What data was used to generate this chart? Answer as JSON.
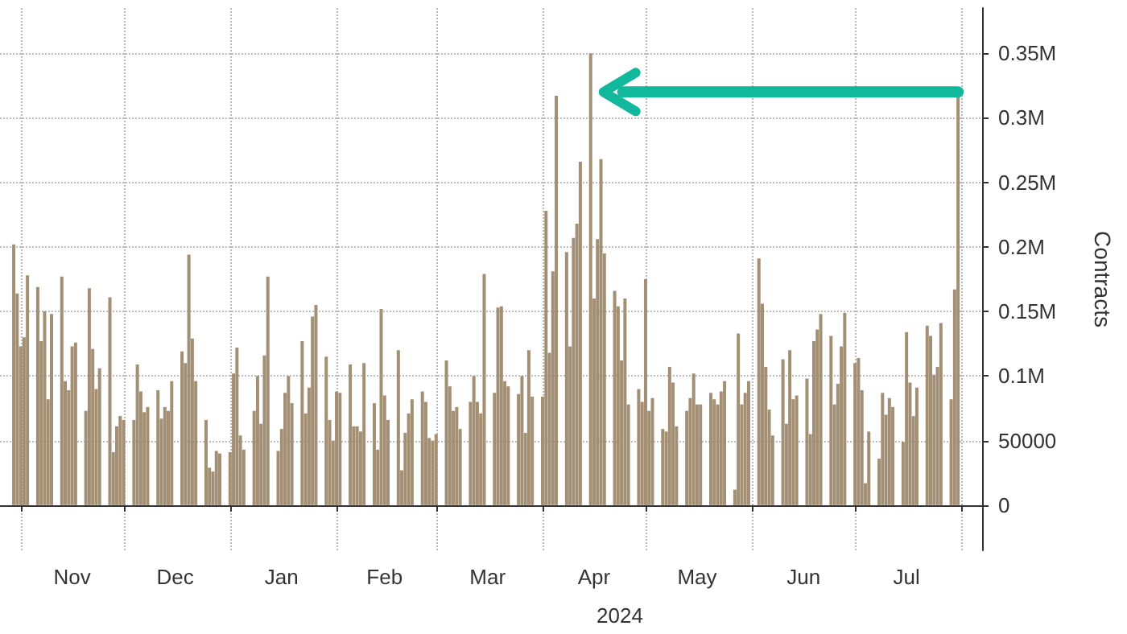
{
  "chart_data": {
    "type": "bar",
    "ylabel": "Contracts",
    "xlabel": "2024",
    "color": "#a38f74",
    "grid": true,
    "xlim": [
      "2023-10-26",
      "2024-08-07"
    ],
    "xticks": [
      {
        "value": "2023-11-01",
        "label": null
      },
      {
        "value": "2023-12-01",
        "label": null
      },
      {
        "value": "2024-01-01",
        "label": null
      },
      {
        "value": "2024-02-01",
        "label": null
      },
      {
        "value": "2024-03-01",
        "label": null
      },
      {
        "value": "2024-04-01",
        "label": null
      },
      {
        "value": "2024-05-01",
        "label": null
      },
      {
        "value": "2024-06-01",
        "label": null
      },
      {
        "value": "2024-07-01",
        "label": null
      },
      {
        "value": "2024-08-01",
        "label": null
      },
      {
        "value": "2023-11-16",
        "label": "Nov"
      },
      {
        "value": "2023-12-16",
        "label": "Dec"
      },
      {
        "value": "2024-01-16",
        "label": "Jan"
      },
      {
        "value": "2024-02-15",
        "label": "Feb"
      },
      {
        "value": "2024-03-16",
        "label": "Mar"
      },
      {
        "value": "2024-04-16",
        "label": "Apr"
      },
      {
        "value": "2024-05-16",
        "label": "May"
      },
      {
        "value": "2024-06-16",
        "label": "Jun"
      },
      {
        "value": "2024-07-16",
        "label": "Jul"
      }
    ],
    "ylim": [
      -35000,
      385000
    ],
    "yticks": [
      0,
      50000,
      {
        "value": 100000,
        "label": "0.1M"
      },
      {
        "value": 150000,
        "label": "0.15M"
      },
      {
        "value": 200000,
        "label": "0.2M"
      },
      {
        "value": 250000,
        "label": "0.25M"
      },
      {
        "value": 300000,
        "label": "0.3M"
      },
      {
        "value": 350000,
        "label": "0.35M"
      }
    ],
    "x": [
      "2023-10-30",
      "2023-10-31",
      "2023-11-01",
      "2023-11-02",
      "2023-11-03",
      "2023-11-06",
      "2023-11-07",
      "2023-11-08",
      "2023-11-09",
      "2023-11-10",
      "2023-11-13",
      "2023-11-14",
      "2023-11-15",
      "2023-11-16",
      "2023-11-17",
      "2023-11-20",
      "2023-11-21",
      "2023-11-22",
      "2023-11-23",
      "2023-11-24",
      "2023-11-27",
      "2023-11-28",
      "2023-11-29",
      "2023-11-30",
      "2023-12-01",
      "2023-12-04",
      "2023-12-05",
      "2023-12-06",
      "2023-12-07",
      "2023-12-08",
      "2023-12-11",
      "2023-12-12",
      "2023-12-13",
      "2023-12-14",
      "2023-12-15",
      "2023-12-18",
      "2023-12-19",
      "2023-12-20",
      "2023-12-21",
      "2023-12-22",
      "2023-12-25",
      "2023-12-26",
      "2023-12-27",
      "2023-12-28",
      "2023-12-29",
      "2024-01-01",
      "2024-01-02",
      "2024-01-03",
      "2024-01-04",
      "2024-01-05",
      "2024-01-08",
      "2024-01-09",
      "2024-01-10",
      "2024-01-11",
      "2024-01-12",
      "2024-01-15",
      "2024-01-16",
      "2024-01-17",
      "2024-01-18",
      "2024-01-19",
      "2024-01-22",
      "2024-01-23",
      "2024-01-24",
      "2024-01-25",
      "2024-01-26",
      "2024-01-29",
      "2024-01-30",
      "2024-01-31",
      "2024-02-01",
      "2024-02-02",
      "2024-02-05",
      "2024-02-06",
      "2024-02-07",
      "2024-02-08",
      "2024-02-09",
      "2024-02-12",
      "2024-02-13",
      "2024-02-14",
      "2024-02-15",
      "2024-02-16",
      "2024-02-19",
      "2024-02-20",
      "2024-02-21",
      "2024-02-22",
      "2024-02-23",
      "2024-02-26",
      "2024-02-27",
      "2024-02-28",
      "2024-02-29",
      "2024-03-01",
      "2024-03-04",
      "2024-03-05",
      "2024-03-06",
      "2024-03-07",
      "2024-03-08",
      "2024-03-11",
      "2024-03-12",
      "2024-03-13",
      "2024-03-14",
      "2024-03-15",
      "2024-03-18",
      "2024-03-19",
      "2024-03-20",
      "2024-03-21",
      "2024-03-22",
      "2024-03-25",
      "2024-03-26",
      "2024-03-27",
      "2024-03-28",
      "2024-03-29",
      "2024-04-01",
      "2024-04-02",
      "2024-04-03",
      "2024-04-04",
      "2024-04-05",
      "2024-04-08",
      "2024-04-09",
      "2024-04-10",
      "2024-04-11",
      "2024-04-12",
      "2024-04-15",
      "2024-04-16",
      "2024-04-17",
      "2024-04-18",
      "2024-04-19",
      "2024-04-22",
      "2024-04-23",
      "2024-04-24",
      "2024-04-25",
      "2024-04-26",
      "2024-04-29",
      "2024-04-30",
      "2024-05-01",
      "2024-05-02",
      "2024-05-03",
      "2024-05-06",
      "2024-05-07",
      "2024-05-08",
      "2024-05-09",
      "2024-05-10",
      "2024-05-13",
      "2024-05-14",
      "2024-05-15",
      "2024-05-16",
      "2024-05-17",
      "2024-05-20",
      "2024-05-21",
      "2024-05-22",
      "2024-05-23",
      "2024-05-24",
      "2024-05-27",
      "2024-05-28",
      "2024-05-29",
      "2024-05-30",
      "2024-05-31",
      "2024-06-03",
      "2024-06-04",
      "2024-06-05",
      "2024-06-06",
      "2024-06-07",
      "2024-06-10",
      "2024-06-11",
      "2024-06-12",
      "2024-06-13",
      "2024-06-14",
      "2024-06-17",
      "2024-06-18",
      "2024-06-19",
      "2024-06-20",
      "2024-06-21",
      "2024-06-24",
      "2024-06-25",
      "2024-06-26",
      "2024-06-27",
      "2024-06-28",
      "2024-07-01",
      "2024-07-02",
      "2024-07-03",
      "2024-07-04",
      "2024-07-05",
      "2024-07-08",
      "2024-07-09",
      "2024-07-10",
      "2024-07-11",
      "2024-07-12",
      "2024-07-15",
      "2024-07-16",
      "2024-07-17",
      "2024-07-18",
      "2024-07-19",
      "2024-07-22",
      "2024-07-23",
      "2024-07-24",
      "2024-07-25",
      "2024-07-26",
      "2024-07-29",
      "2024-07-30",
      "2024-07-31"
    ],
    "values": [
      202000,
      164000,
      123000,
      130000,
      178000,
      169000,
      127000,
      150000,
      82000,
      148000,
      177000,
      96000,
      89000,
      123000,
      126000,
      73000,
      168000,
      121000,
      90000,
      106000,
      161000,
      41000,
      61000,
      69000,
      66000,
      66000,
      109000,
      88000,
      72000,
      76000,
      89000,
      67000,
      76000,
      73000,
      96000,
      119000,
      110000,
      194000,
      129000,
      96000,
      66000,
      29000,
      26000,
      42000,
      40000,
      41000,
      102000,
      122000,
      54000,
      43000,
      73000,
      100000,
      63000,
      116000,
      177000,
      42000,
      59000,
      87000,
      100000,
      79000,
      127000,
      71000,
      91000,
      146000,
      155000,
      115000,
      66000,
      50000,
      88000,
      87000,
      109000,
      61000,
      61000,
      57000,
      110000,
      79000,
      43000,
      152000,
      85000,
      66000,
      120000,
      27000,
      56000,
      71000,
      82000,
      88000,
      80000,
      52000,
      50000,
      55000,
      112000,
      92000,
      73000,
      76000,
      59000,
      80000,
      100000,
      80000,
      71000,
      179000,
      87000,
      153000,
      154000,
      96000,
      92000,
      86000,
      100000,
      56000,
      120000,
      84000,
      84000,
      228000,
      118000,
      181000,
      317000,
      196000,
      123000,
      207000,
      218000,
      266000,
      350000,
      160000,
      206000,
      268000,
      195000,
      166000,
      154000,
      112000,
      160000,
      78000,
      90000,
      80000,
      175000,
      73000,
      83000,
      59000,
      57000,
      107000,
      95000,
      61000,
      73000,
      83000,
      102000,
      78000,
      78000,
      87000,
      82000,
      78000,
      88000,
      96000,
      12000,
      133000,
      78000,
      87000,
      96000,
      191000,
      156000,
      107000,
      74000,
      54000,
      113000,
      63000,
      120000,
      82000,
      85000,
      98000,
      55000,
      127000,
      136000,
      148000,
      131000,
      78000,
      94000,
      123000,
      149000,
      110000,
      114000,
      89000,
      17000,
      57000,
      36000,
      87000,
      70000,
      83000,
      76000,
      49000,
      134000,
      95000,
      69000,
      91000,
      139000,
      131000,
      101000,
      107000,
      141000,
      82000,
      167000,
      320000
    ]
  }
}
